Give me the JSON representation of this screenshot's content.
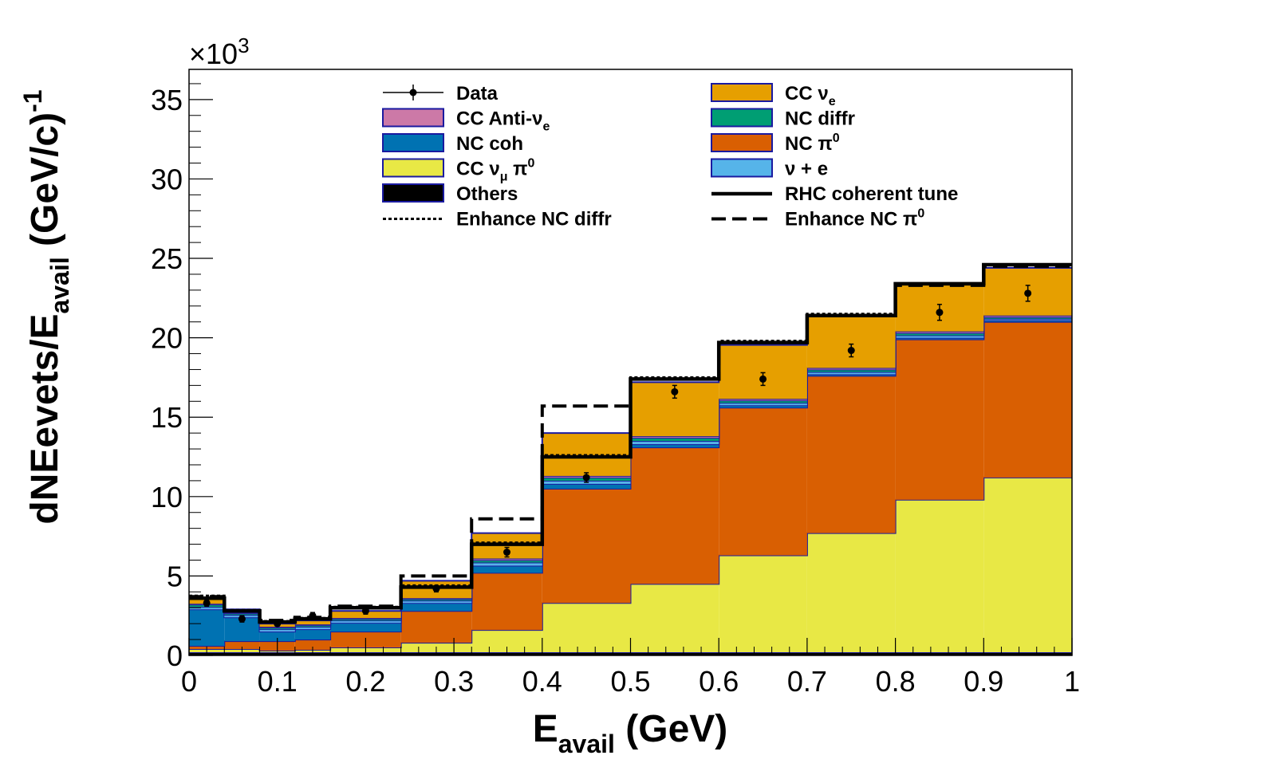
{
  "chart_data": {
    "type": "bar",
    "subtype": "stacked-histogram",
    "xlabel": {
      "main": "E",
      "sub": "avail",
      "rest": " (GeV)"
    },
    "ylabel": {
      "main": "dNEevets/E",
      "sub": "avail",
      "rest": " (GeV/c)",
      "sup": "-1"
    },
    "yscale_label": {
      "base": "×10",
      "exp": "3"
    },
    "xlim": [
      0,
      1
    ],
    "ylim": [
      0,
      36.9
    ],
    "x_ticks": [
      "0",
      "0.1",
      "0.2",
      "0.3",
      "0.4",
      "0.5",
      "0.6",
      "0.7",
      "0.8",
      "0.9",
      "1"
    ],
    "x_tick_values": [
      0,
      0.1,
      0.2,
      0.3,
      0.4,
      0.5,
      0.6,
      0.7,
      0.8,
      0.9,
      1.0
    ],
    "y_ticks": [
      "0",
      "5",
      "10",
      "15",
      "20",
      "25",
      "30",
      "35"
    ],
    "y_tick_values": [
      0,
      5,
      10,
      15,
      20,
      25,
      30,
      35
    ],
    "bin_edges": [
      0,
      0.04,
      0.08,
      0.12,
      0.16,
      0.24,
      0.32,
      0.4,
      0.5,
      0.6,
      0.7,
      0.8,
      0.9,
      1.0
    ],
    "stack": [
      {
        "name": "Others",
        "label": "Others",
        "color": "#000000",
        "values": [
          0.2,
          0.2,
          0.2,
          0.2,
          0.2,
          0.2,
          0.2,
          0.2,
          0.2,
          0.2,
          0.2,
          0.2,
          0.2
        ]
      },
      {
        "name": "CC numu pi0",
        "label": "CC ν",
        "label_sub": "μ",
        "label_tail": " π",
        "label_sup": "0",
        "color": "#e8e845",
        "values": [
          0.2,
          0.2,
          0.1,
          0.15,
          0.3,
          0.6,
          1.4,
          3.1,
          4.3,
          6.1,
          7.5,
          9.6,
          11.0
        ]
      },
      {
        "name": "NC pi0",
        "label": "NC π",
        "label_sup": "0",
        "color": "#d95f02",
        "values": [
          0.2,
          0.5,
          0.6,
          0.65,
          1.0,
          2.0,
          3.6,
          7.2,
          8.6,
          9.3,
          9.9,
          10.1,
          9.8
        ]
      },
      {
        "name": "NC coh",
        "label": "NC coh",
        "color": "#0072b2",
        "values": [
          2.3,
          1.5,
          0.6,
          0.65,
          0.55,
          0.5,
          0.45,
          0.3,
          0.2,
          0.15,
          0.1,
          0.1,
          0.1
        ]
      },
      {
        "name": "nu + e",
        "label": "ν + e",
        "color": "#56b4e9",
        "values": [
          0.15,
          0.15,
          0.15,
          0.15,
          0.15,
          0.15,
          0.2,
          0.2,
          0.2,
          0.15,
          0.15,
          0.15,
          0.1
        ]
      },
      {
        "name": "NC diffr",
        "label": "NC diffr",
        "color": "#009e73",
        "values": [
          0.15,
          0.1,
          0.1,
          0.1,
          0.1,
          0.1,
          0.15,
          0.2,
          0.2,
          0.15,
          0.15,
          0.15,
          0.1
        ]
      },
      {
        "name": "CC anti-nue",
        "label": "CC Anti-ν",
        "label_sub": "e",
        "color": "#cc79a7",
        "values": [
          0.05,
          0.05,
          0.05,
          0.05,
          0.05,
          0.05,
          0.1,
          0.1,
          0.1,
          0.1,
          0.1,
          0.1,
          0.1
        ]
      },
      {
        "name": "CC nue",
        "label": "CC ν",
        "label_sub": "e",
        "color": "#e69f00",
        "values": [
          0.35,
          0.2,
          0.2,
          0.25,
          0.45,
          1.1,
          1.6,
          2.7,
          3.4,
          3.4,
          3.3,
          3.0,
          3.0
        ]
      }
    ],
    "lines": [
      {
        "name": "RHC coherent tune",
        "label": "RHC coherent tune",
        "style": "solid",
        "values": [
          3.6,
          2.8,
          2.1,
          2.3,
          3.0,
          4.3,
          7.0,
          12.5,
          17.4,
          19.7,
          21.4,
          23.4,
          24.6
        ]
      },
      {
        "name": "Enhance NC diffr",
        "label": "Enhance NC diffr",
        "style": "dotted",
        "values": [
          3.75,
          2.85,
          2.15,
          2.35,
          3.05,
          4.4,
          7.1,
          12.6,
          17.5,
          19.8,
          21.5,
          23.4,
          24.6
        ]
      },
      {
        "name": "Enhance NC pi0",
        "label": "Enhance NC π",
        "label_sup": "0",
        "style": "dashed",
        "values": [
          3.7,
          2.8,
          2.2,
          2.4,
          3.1,
          5.0,
          8.6,
          15.7,
          17.4,
          19.7,
          21.4,
          23.3,
          24.5
        ]
      }
    ],
    "data": {
      "name": "Data",
      "label": "Data",
      "x": [
        0.02,
        0.06,
        0.1,
        0.14,
        0.2,
        0.28,
        0.36,
        0.45,
        0.55,
        0.65,
        0.75,
        0.85,
        0.95
      ],
      "y": [
        3.3,
        2.3,
        2.0,
        2.5,
        2.8,
        4.2,
        6.5,
        11.2,
        16.6,
        17.4,
        19.2,
        21.6,
        22.8
      ],
      "err": [
        0.2,
        0.2,
        0.15,
        0.2,
        0.2,
        0.2,
        0.3,
        0.3,
        0.4,
        0.4,
        0.4,
        0.5,
        0.5
      ]
    },
    "legend": {
      "position": "top",
      "columns": [
        [
          "Data",
          "CC anti-nue",
          "NC coh",
          "CC numu pi0",
          "Others",
          "Enhance NC diffr"
        ],
        [
          "CC nue",
          "NC diffr",
          "NC pi0",
          "nu + e",
          "RHC coherent tune",
          "Enhance NC pi0"
        ]
      ]
    },
    "colors": {
      "axis": "#000000",
      "outline": "#1a1aa0",
      "background": "#ffffff"
    }
  }
}
